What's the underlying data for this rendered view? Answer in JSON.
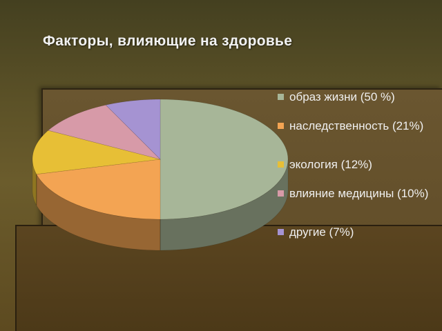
{
  "title": "Факторы, влияющие на здоровье",
  "chart_data": {
    "type": "pie",
    "style": "3d",
    "legend_position": "right",
    "slices": [
      {
        "label": "образ жизни (50 %)",
        "value": 50,
        "color": "#a7b698"
      },
      {
        "label": "наследственность (21%)",
        "value": 21,
        "color": "#f3a453"
      },
      {
        "label": "экология (12%)",
        "value": 12,
        "color": "#e7bf36"
      },
      {
        "label": "влияние медицины (10%)",
        "value": 10,
        "color": "#d79aa8"
      },
      {
        "label": "другие (7%)",
        "value": 7,
        "color": "#a593d2"
      }
    ]
  }
}
